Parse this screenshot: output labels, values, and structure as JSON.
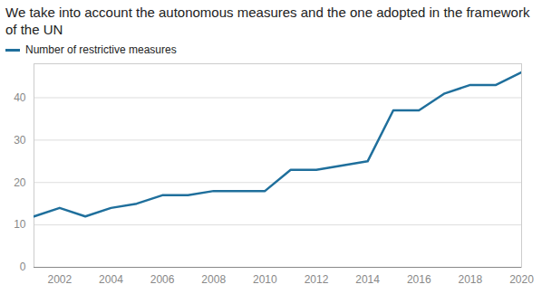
{
  "chart_data": {
    "type": "line",
    "title": "We take into account the autonomous measures and the one adopted in the framework of the UN",
    "x": [
      2001,
      2002,
      2003,
      2004,
      2005,
      2006,
      2007,
      2008,
      2009,
      2010,
      2011,
      2012,
      2013,
      2014,
      2015,
      2016,
      2017,
      2018,
      2019,
      2020
    ],
    "series": [
      {
        "name": "Number of restrictive measures",
        "color": "#1f6f9c",
        "values": [
          12,
          14,
          12,
          14,
          15,
          17,
          17,
          18,
          18,
          18,
          23,
          23,
          24,
          25,
          37,
          37,
          41,
          43,
          43,
          46
        ]
      }
    ],
    "xlim": [
      2001,
      2020
    ],
    "ylim": [
      0,
      48
    ],
    "xticks": [
      2002,
      2004,
      2006,
      2008,
      2010,
      2012,
      2014,
      2016,
      2018,
      2020
    ],
    "yticks": [
      0,
      10,
      20,
      30,
      40
    ],
    "grid": true,
    "legend": "top-left"
  }
}
